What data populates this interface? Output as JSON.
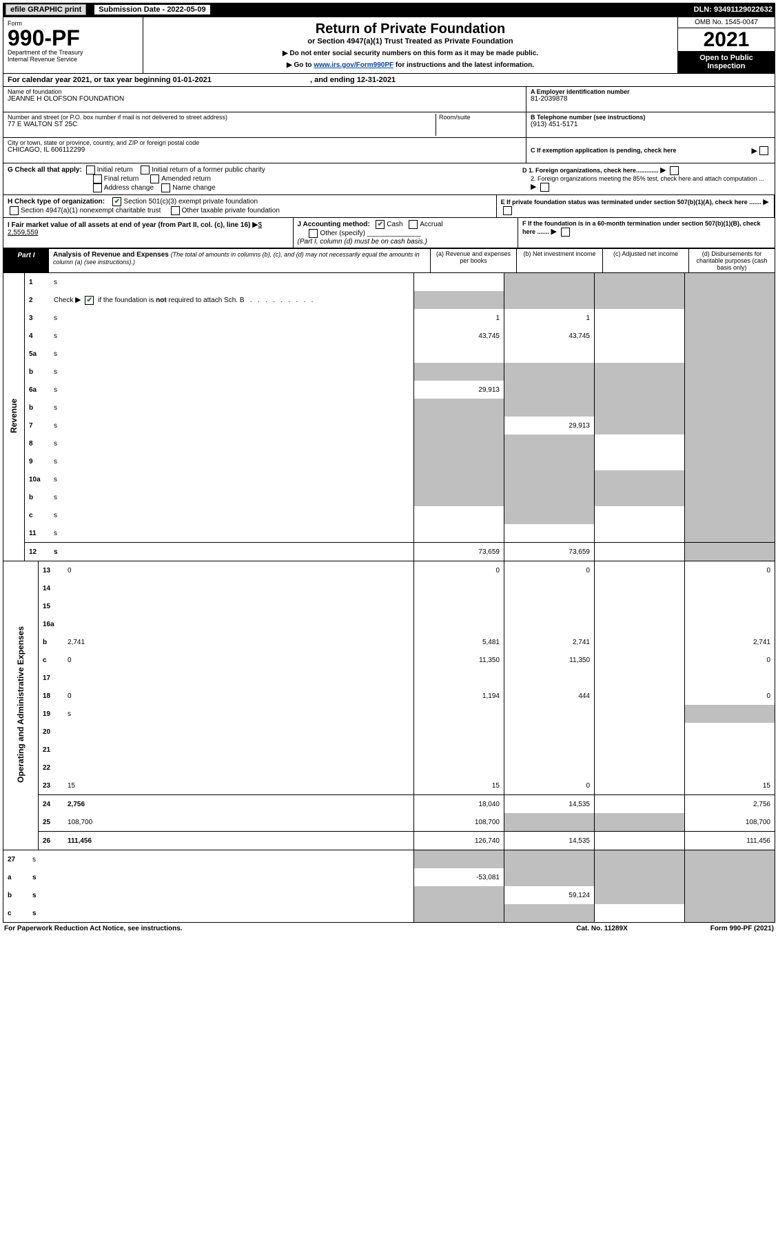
{
  "top": {
    "efile": "efile GRAPHIC print",
    "sub_label": "Submission Date - 2022-05-09",
    "dln": "DLN: 93491129022632"
  },
  "header": {
    "form_word": "Form",
    "form_no": "990-PF",
    "dept": "Department of the Treasury",
    "irs": "Internal Revenue Service",
    "title": "Return of Private Foundation",
    "subtitle": "or Section 4947(a)(1) Trust Treated as Private Foundation",
    "note1": "▶ Do not enter social security numbers on this form as it may be made public.",
    "note2_prefix": "▶ Go to ",
    "note2_link": "www.irs.gov/Form990PF",
    "note2_suffix": " for instructions and the latest information.",
    "omb": "OMB No. 1545-0047",
    "year": "2021",
    "open": "Open to Public Inspection"
  },
  "cal_year": {
    "text": "For calendar year 2021, or tax year beginning 01-01-2021",
    "end": ", and ending 12-31-2021"
  },
  "info": {
    "name_lbl": "Name of foundation",
    "name_val": "JEANNE H OLOFSON FOUNDATION",
    "addr_lbl": "Number and street (or P.O. box number if mail is not delivered to street address)",
    "addr_val": "77 E WALTON ST 25C",
    "room_lbl": "Room/suite",
    "city_lbl": "City or town, state or province, country, and ZIP or foreign postal code",
    "city_val": "CHICAGO, IL  606112299",
    "a_lbl": "A Employer identification number",
    "a_val": "81-2039878",
    "b_lbl": "B Telephone number (see instructions)",
    "b_val": "(913) 451-5171",
    "c_lbl": "C If exemption application is pending, check here",
    "d1": "D 1. Foreign organizations, check here.............",
    "d2": "2. Foreign organizations meeting the 85% test, check here and attach computation ...",
    "e": "E If private foundation status was terminated under section 507(b)(1)(A), check here .......",
    "f": "F If the foundation is in a 60-month termination under section 507(b)(1)(B), check here .......",
    "g_lbl": "G Check all that apply:",
    "g_opts": [
      "Initial return",
      "Initial return of a former public charity",
      "Final return",
      "Amended return",
      "Address change",
      "Name change"
    ],
    "h_lbl": "H Check type of organization:",
    "h_501c3": "Section 501(c)(3) exempt private foundation",
    "h_4947": "Section 4947(a)(1) nonexempt charitable trust",
    "h_other": "Other taxable private foundation",
    "i_lbl": "I Fair market value of all assets at end of year (from Part II, col. (c), line 16)",
    "i_val": "$  2,559,559",
    "j_lbl": "J Accounting method:",
    "j_cash": "Cash",
    "j_accrual": "Accrual",
    "j_other": "Other (specify)",
    "j_note": "(Part I, column (d) must be on cash basis.)"
  },
  "part1": {
    "label": "Part I",
    "title": "Analysis of Revenue and Expenses",
    "title_note": "(The total of amounts in columns (b), (c), and (d) may not necessarily equal the amounts in column (a) (see instructions).)",
    "col_a": "(a) Revenue and expenses per books",
    "col_b": "(b) Net investment income",
    "col_c": "(c) Adjusted net income",
    "col_d": "(d) Disbursements for charitable purposes (cash basis only)"
  },
  "side": {
    "revenue": "Revenue",
    "expenses": "Operating and Administrative Expenses"
  },
  "rows": [
    {
      "n": "1",
      "d": "s",
      "a": "",
      "b": "s",
      "c": "s"
    },
    {
      "n": "2",
      "d": "s",
      "a": "s",
      "b": "s",
      "c": "s",
      "raw": true
    },
    {
      "n": "3",
      "d": "s",
      "a": "1",
      "b": "1",
      "c": ""
    },
    {
      "n": "4",
      "d": "s",
      "a": "43,745",
      "b": "43,745",
      "c": ""
    },
    {
      "n": "5a",
      "d": "s",
      "a": "",
      "b": "",
      "c": ""
    },
    {
      "n": "b",
      "d": "s",
      "a": "s",
      "b": "s",
      "c": "s"
    },
    {
      "n": "6a",
      "d": "s",
      "a": "29,913",
      "b": "s",
      "c": "s"
    },
    {
      "n": "b",
      "d": "s",
      "a": "s",
      "b": "s",
      "c": "s"
    },
    {
      "n": "7",
      "d": "s",
      "a": "s",
      "b": "29,913",
      "c": "s"
    },
    {
      "n": "8",
      "d": "s",
      "a": "s",
      "b": "s",
      "c": ""
    },
    {
      "n": "9",
      "d": "s",
      "a": "s",
      "b": "s",
      "c": ""
    },
    {
      "n": "10a",
      "d": "s",
      "a": "s",
      "b": "s",
      "c": "s"
    },
    {
      "n": "b",
      "d": "s",
      "a": "s",
      "b": "s",
      "c": "s"
    },
    {
      "n": "c",
      "d": "s",
      "a": "",
      "b": "s",
      "c": ""
    },
    {
      "n": "11",
      "d": "s",
      "a": "",
      "b": "",
      "c": ""
    },
    {
      "n": "12",
      "d": "s",
      "a": "73,659",
      "b": "73,659",
      "c": "",
      "bold": true,
      "bt": true
    }
  ],
  "exp_rows": [
    {
      "n": "13",
      "d": "0",
      "a": "0",
      "b": "0",
      "c": ""
    },
    {
      "n": "14",
      "d": "",
      "a": "",
      "b": "",
      "c": ""
    },
    {
      "n": "15",
      "d": "",
      "a": "",
      "b": "",
      "c": ""
    },
    {
      "n": "16a",
      "d": "",
      "a": "",
      "b": "",
      "c": ""
    },
    {
      "n": "b",
      "d": "2,741",
      "a": "5,481",
      "b": "2,741",
      "c": ""
    },
    {
      "n": "c",
      "d": "0",
      "a": "11,350",
      "b": "11,350",
      "c": ""
    },
    {
      "n": "17",
      "d": "",
      "a": "",
      "b": "",
      "c": ""
    },
    {
      "n": "18",
      "d": "0",
      "a": "1,194",
      "b": "444",
      "c": ""
    },
    {
      "n": "19",
      "d": "s",
      "a": "",
      "b": "",
      "c": ""
    },
    {
      "n": "20",
      "d": "",
      "a": "",
      "b": "",
      "c": ""
    },
    {
      "n": "21",
      "d": "",
      "a": "",
      "b": "",
      "c": ""
    },
    {
      "n": "22",
      "d": "",
      "a": "",
      "b": "",
      "c": ""
    },
    {
      "n": "23",
      "d": "15",
      "a": "15",
      "b": "0",
      "c": ""
    },
    {
      "n": "24",
      "d": "2,756",
      "a": "18,040",
      "b": "14,535",
      "c": "",
      "bold": true,
      "bt": true
    },
    {
      "n": "25",
      "d": "108,700",
      "a": "108,700",
      "b": "s",
      "c": "s"
    },
    {
      "n": "26",
      "d": "111,456",
      "a": "126,740",
      "b": "14,535",
      "c": "",
      "bold": true,
      "bt": true
    }
  ],
  "bottom_rows": [
    {
      "n": "27",
      "d": "s",
      "a": "s",
      "b": "s",
      "c": "s"
    },
    {
      "n": "a",
      "d": "s",
      "a": "-53,081",
      "b": "s",
      "c": "s",
      "bold": true
    },
    {
      "n": "b",
      "d": "s",
      "a": "s",
      "b": "59,124",
      "c": "s",
      "bold": true
    },
    {
      "n": "c",
      "d": "s",
      "a": "s",
      "b": "s",
      "c": "",
      "bold": true
    }
  ],
  "footer": {
    "left": "For Paperwork Reduction Act Notice, see instructions.",
    "mid": "Cat. No. 11289X",
    "right": "Form 990-PF (2021)"
  }
}
